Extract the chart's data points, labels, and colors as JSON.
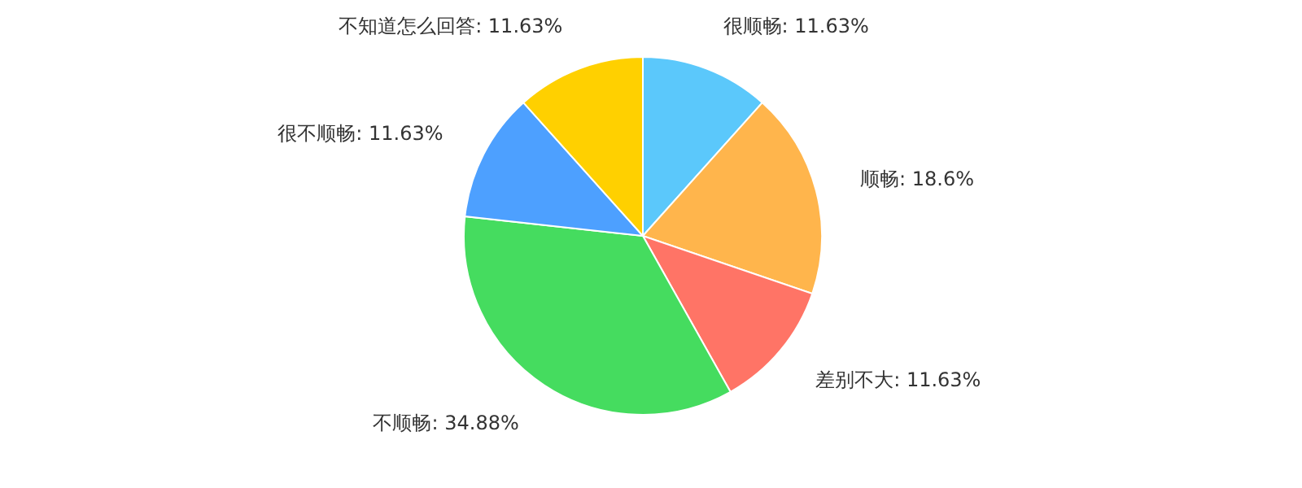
{
  "chart_data": {
    "type": "pie",
    "categories": [
      "很顺畅",
      "顺畅",
      "差别不大",
      "不顺畅",
      "很不顺畅",
      "不知道怎么回答"
    ],
    "values": [
      11.63,
      18.6,
      11.63,
      34.88,
      11.63,
      11.63
    ],
    "colors": [
      "#5bc8fb",
      "#ffb54c",
      "#ff7466",
      "#45dc5f",
      "#4da0ff",
      "#ffd000"
    ],
    "value_labels": [
      "11.63%",
      "18.6%",
      "11.63%",
      "34.88%",
      "11.63%",
      "11.63%"
    ],
    "legend": false
  }
}
